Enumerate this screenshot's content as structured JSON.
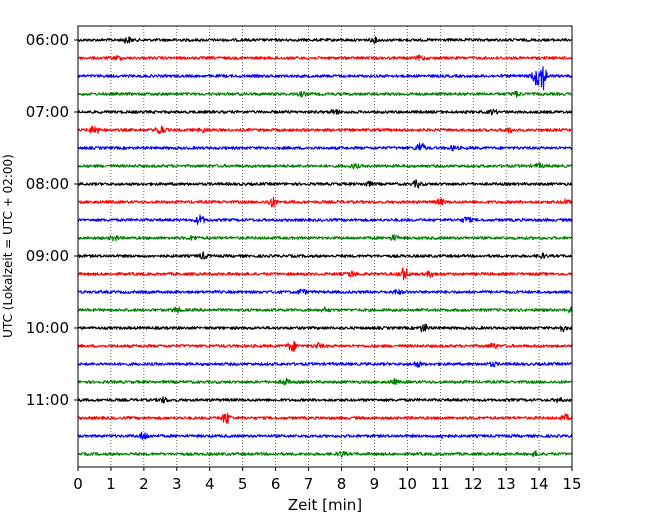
{
  "chart_data": {
    "type": "line",
    "title": "",
    "xlabel": "Zeit  [min]",
    "ylabel": "UTC (Lokalzeit = UTC + 02:00)",
    "xlim": [
      0,
      15
    ],
    "xticks": [
      0,
      1,
      2,
      3,
      4,
      5,
      6,
      7,
      8,
      9,
      10,
      11,
      12,
      13,
      14,
      15
    ],
    "y_start": "06:00",
    "y_end": "11:45",
    "trace_interval_minutes": 15,
    "ytick_labels": [
      "06:00",
      "07:00",
      "08:00",
      "09:00",
      "10:00",
      "11:00"
    ],
    "grid_x": true,
    "grid_style": "dotted",
    "colors": [
      "#000000",
      "#ff0000",
      "#0000ff",
      "#008000"
    ],
    "series": [
      {
        "start": "06:00",
        "color": "#000000",
        "events": [
          [
            1.5,
            0.6
          ],
          [
            9.0,
            0.4
          ]
        ]
      },
      {
        "start": "06:15",
        "color": "#ff0000",
        "events": [
          [
            1.2,
            0.4
          ],
          [
            10.4,
            0.4
          ]
        ]
      },
      {
        "start": "06:30",
        "color": "#0000ff",
        "events": [
          [
            14.1,
            3.0
          ],
          [
            13.9,
            1.5
          ]
        ]
      },
      {
        "start": "06:45",
        "color": "#008000",
        "events": [
          [
            6.8,
            0.4
          ],
          [
            13.3,
            0.5
          ]
        ]
      },
      {
        "start": "07:00",
        "color": "#000000",
        "events": [
          [
            7.8,
            0.5
          ],
          [
            12.6,
            0.4
          ]
        ]
      },
      {
        "start": "07:15",
        "color": "#ff0000",
        "events": [
          [
            0.5,
            1.0
          ],
          [
            2.5,
            1.0
          ],
          [
            3.8,
            0.4
          ],
          [
            13.1,
            0.4
          ]
        ]
      },
      {
        "start": "07:30",
        "color": "#0000ff",
        "events": [
          [
            10.4,
            1.1
          ],
          [
            11.4,
            0.4
          ]
        ]
      },
      {
        "start": "07:45",
        "color": "#008000",
        "events": [
          [
            8.4,
            0.4
          ],
          [
            14.0,
            0.4
          ]
        ]
      },
      {
        "start": "08:00",
        "color": "#000000",
        "events": [
          [
            8.8,
            0.4
          ],
          [
            10.3,
            0.7
          ]
        ]
      },
      {
        "start": "08:15",
        "color": "#ff0000",
        "events": [
          [
            5.9,
            1.0
          ],
          [
            11.0,
            0.5
          ],
          [
            14.8,
            0.4
          ]
        ]
      },
      {
        "start": "08:30",
        "color": "#0000ff",
        "events": [
          [
            3.7,
            1.0
          ],
          [
            11.8,
            0.6
          ]
        ]
      },
      {
        "start": "08:45",
        "color": "#008000",
        "events": [
          [
            1.1,
            0.5
          ],
          [
            3.5,
            0.4
          ],
          [
            9.6,
            0.5
          ]
        ]
      },
      {
        "start": "09:00",
        "color": "#000000",
        "events": [
          [
            3.8,
            0.6
          ],
          [
            14.1,
            0.4
          ]
        ]
      },
      {
        "start": "09:15",
        "color": "#ff0000",
        "events": [
          [
            8.3,
            0.6
          ],
          [
            9.9,
            1.3
          ],
          [
            10.7,
            0.5
          ]
        ]
      },
      {
        "start": "09:30",
        "color": "#0000ff",
        "events": [
          [
            6.8,
            0.5
          ],
          [
            9.7,
            0.4
          ]
        ]
      },
      {
        "start": "09:45",
        "color": "#008000",
        "events": [
          [
            3.0,
            0.5
          ],
          [
            7.5,
            0.4
          ],
          [
            15.0,
            0.6
          ]
        ]
      },
      {
        "start": "10:00",
        "color": "#000000",
        "events": [
          [
            10.5,
            0.8
          ],
          [
            14.7,
            0.6
          ]
        ]
      },
      {
        "start": "10:15",
        "color": "#ff0000",
        "events": [
          [
            6.5,
            1.1
          ],
          [
            7.3,
            0.5
          ],
          [
            12.6,
            0.5
          ]
        ]
      },
      {
        "start": "10:30",
        "color": "#0000ff",
        "events": [
          [
            10.3,
            0.5
          ],
          [
            12.6,
            0.4
          ]
        ]
      },
      {
        "start": "10:45",
        "color": "#008000",
        "events": [
          [
            6.3,
            0.6
          ],
          [
            9.6,
            0.4
          ]
        ]
      },
      {
        "start": "11:00",
        "color": "#000000",
        "events": [
          [
            2.6,
            0.5
          ],
          [
            14.6,
            0.4
          ]
        ]
      },
      {
        "start": "11:15",
        "color": "#ff0000",
        "events": [
          [
            4.5,
            1.2
          ],
          [
            14.8,
            0.6
          ]
        ]
      },
      {
        "start": "11:30",
        "color": "#0000ff",
        "events": [
          [
            2.0,
            0.8
          ],
          [
            11.1,
            0.4
          ]
        ]
      },
      {
        "start": "11:45",
        "color": "#008000",
        "events": [
          [
            8.0,
            0.5
          ],
          [
            13.9,
            0.4
          ]
        ]
      }
    ]
  }
}
